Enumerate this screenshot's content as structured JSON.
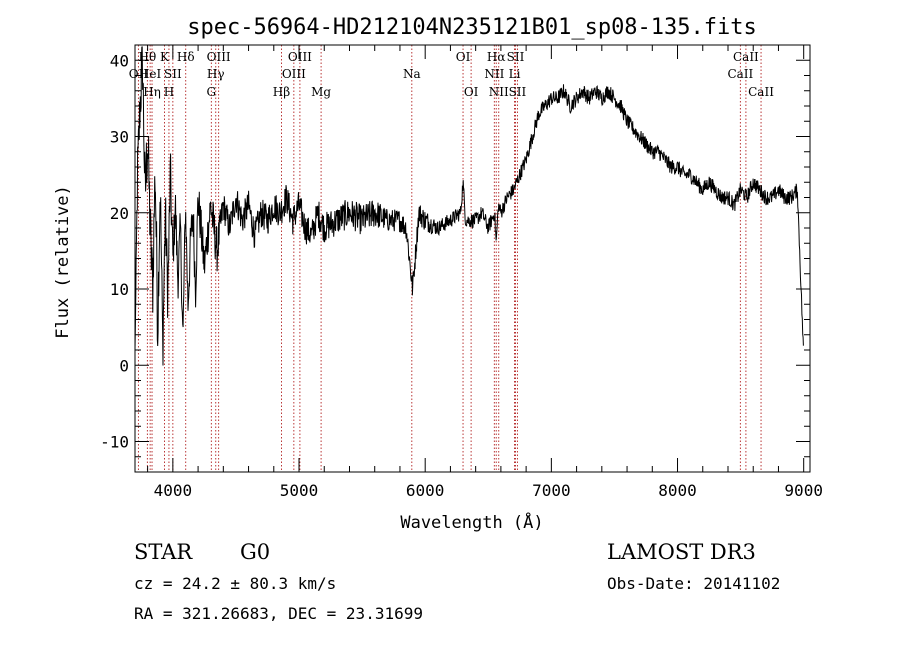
{
  "chart_data": {
    "type": "line",
    "title": "spec-56964-HD212104N235121B01_sp08-135.fits",
    "xlabel": "Wavelength (Å)",
    "ylabel": "Flux (relative)",
    "xlim": [
      3700,
      9050
    ],
    "ylim": [
      -14,
      42
    ],
    "x_ticks": [
      4000,
      5000,
      6000,
      7000,
      8000,
      9000
    ],
    "y_ticks": [
      -10,
      0,
      10,
      20,
      30,
      40
    ],
    "grid": false,
    "series": [
      {
        "name": "flux",
        "color": "#000000",
        "x": [
          3700,
          3720,
          3740,
          3760,
          3780,
          3800,
          3820,
          3840,
          3860,
          3880,
          3900,
          3920,
          3940,
          3960,
          3980,
          4000,
          4020,
          4040,
          4060,
          4080,
          4100,
          4120,
          4140,
          4160,
          4180,
          4200,
          4250,
          4300,
          4350,
          4400,
          4450,
          4500,
          4550,
          4600,
          4650,
          4700,
          4750,
          4800,
          4850,
          4900,
          4950,
          5000,
          5050,
          5100,
          5150,
          5200,
          5300,
          5400,
          5500,
          5600,
          5700,
          5800,
          5850,
          5900,
          5950,
          6000,
          6100,
          6200,
          6280,
          6300,
          6320,
          6400,
          6450,
          6500,
          6550,
          6563,
          6580,
          6600,
          6650,
          6700,
          6750,
          6800,
          6850,
          6900,
          6950,
          7000,
          7050,
          7100,
          7150,
          7200,
          7250,
          7300,
          7350,
          7400,
          7450,
          7500,
          7550,
          7600,
          7650,
          7700,
          7750,
          7800,
          7850,
          7900,
          7950,
          8000,
          8050,
          8100,
          8150,
          8200,
          8250,
          8300,
          8350,
          8400,
          8450,
          8500,
          8550,
          8600,
          8650,
          8700,
          8750,
          8800,
          8850,
          8900,
          8950,
          9000
        ],
        "values": [
          2,
          25,
          34,
          40,
          22,
          30,
          18,
          10,
          26,
          5,
          24,
          2,
          20,
          9,
          25,
          14,
          21,
          11,
          18,
          3,
          21,
          8,
          16,
          20,
          10,
          22,
          13,
          21,
          15,
          21,
          18,
          22,
          19,
          21,
          17,
          20,
          19,
          21,
          20,
          22,
          19,
          21,
          18,
          17,
          20,
          18,
          19,
          20,
          19,
          20,
          19,
          19,
          18,
          10,
          20,
          19,
          18,
          19,
          20,
          24,
          19,
          19,
          20,
          18,
          20,
          16,
          21,
          20,
          22,
          23,
          25,
          27,
          30,
          33,
          34,
          35,
          35,
          36,
          34,
          35,
          36,
          35,
          36,
          35,
          36,
          35,
          34,
          32,
          31,
          30,
          29,
          28,
          28,
          27,
          26,
          26,
          25,
          25,
          24,
          23,
          24,
          23,
          22,
          22,
          21,
          23,
          22,
          24,
          23,
          22,
          22,
          23,
          22,
          22,
          23,
          1
        ],
        "noise_amplitude": [
          0,
          4,
          4,
          5,
          5,
          5,
          5,
          5,
          5,
          5,
          4,
          4,
          4,
          4,
          4,
          3,
          3,
          3,
          3,
          3,
          3,
          3,
          3,
          3,
          3,
          3,
          3,
          3,
          3,
          2,
          2,
          2,
          2,
          2,
          2,
          2,
          2,
          2,
          2,
          2,
          2,
          2,
          2,
          2,
          2,
          2,
          2,
          2,
          2,
          2,
          1.5,
          1.5,
          1.5,
          1.5,
          1.5,
          1.5,
          1,
          1,
          1,
          1,
          1,
          1,
          1,
          1,
          1,
          1,
          1,
          1,
          1,
          1,
          1,
          1,
          1,
          1,
          1,
          1,
          1,
          1,
          1,
          1,
          1,
          1,
          1,
          1,
          1,
          1,
          1,
          1,
          1,
          1,
          1,
          1,
          1,
          1,
          1,
          1,
          1,
          1,
          1,
          1,
          1,
          1,
          1,
          1,
          1,
          1,
          1,
          1,
          1,
          1,
          1,
          1,
          1,
          1,
          1,
          1
        ]
      }
    ],
    "lines": [
      {
        "label": "Hθ",
        "x": 3798,
        "row": 0
      },
      {
        "label": "OII",
        "x": 3727,
        "row": 1
      },
      {
        "label": "HeI",
        "x": 3820,
        "row": 1
      },
      {
        "label": "Hη",
        "x": 3835,
        "row": 2
      },
      {
        "label": "K",
        "x": 3934,
        "row": 0
      },
      {
        "label": "H",
        "x": 3969,
        "row": 2
      },
      {
        "label": "SII",
        "x": 4000,
        "row": 1
      },
      {
        "label": "Hδ",
        "x": 4102,
        "row": 0
      },
      {
        "label": "OIII",
        "x": 4363,
        "row": 0
      },
      {
        "label": "Hγ",
        "x": 4340,
        "row": 1
      },
      {
        "label": "G",
        "x": 4305,
        "row": 2
      },
      {
        "label": "Hβ",
        "x": 4861,
        "row": 2
      },
      {
        "label": "OIII",
        "x": 5007,
        "row": 0
      },
      {
        "label": "OIII",
        "x": 4959,
        "row": 1
      },
      {
        "label": "Mg",
        "x": 5175,
        "row": 2
      },
      {
        "label": "Na",
        "x": 5894,
        "row": 1
      },
      {
        "label": "OI",
        "x": 6300,
        "row": 0
      },
      {
        "label": "OI",
        "x": 6364,
        "row": 2
      },
      {
        "label": "Hα",
        "x": 6563,
        "row": 0
      },
      {
        "label": "SII",
        "x": 6716,
        "row": 0
      },
      {
        "label": "NII",
        "x": 6548,
        "row": 1
      },
      {
        "label": "Li",
        "x": 6708,
        "row": 1
      },
      {
        "label": "NII",
        "x": 6583,
        "row": 2
      },
      {
        "label": "SII",
        "x": 6731,
        "row": 2
      },
      {
        "label": "CaII",
        "x": 8542,
        "row": 0
      },
      {
        "label": "CaII",
        "x": 8498,
        "row": 1
      },
      {
        "label": "CaII",
        "x": 8662,
        "row": 2
      }
    ]
  },
  "info": {
    "object_class": "STAR",
    "subclass": "G0",
    "survey": "LAMOST DR3",
    "cz": "cz = 24.2 ± 80.3 km/s",
    "obs_date": "Obs-Date: 20141102",
    "coords": "RA = 321.26683, DEC =  23.31699"
  }
}
